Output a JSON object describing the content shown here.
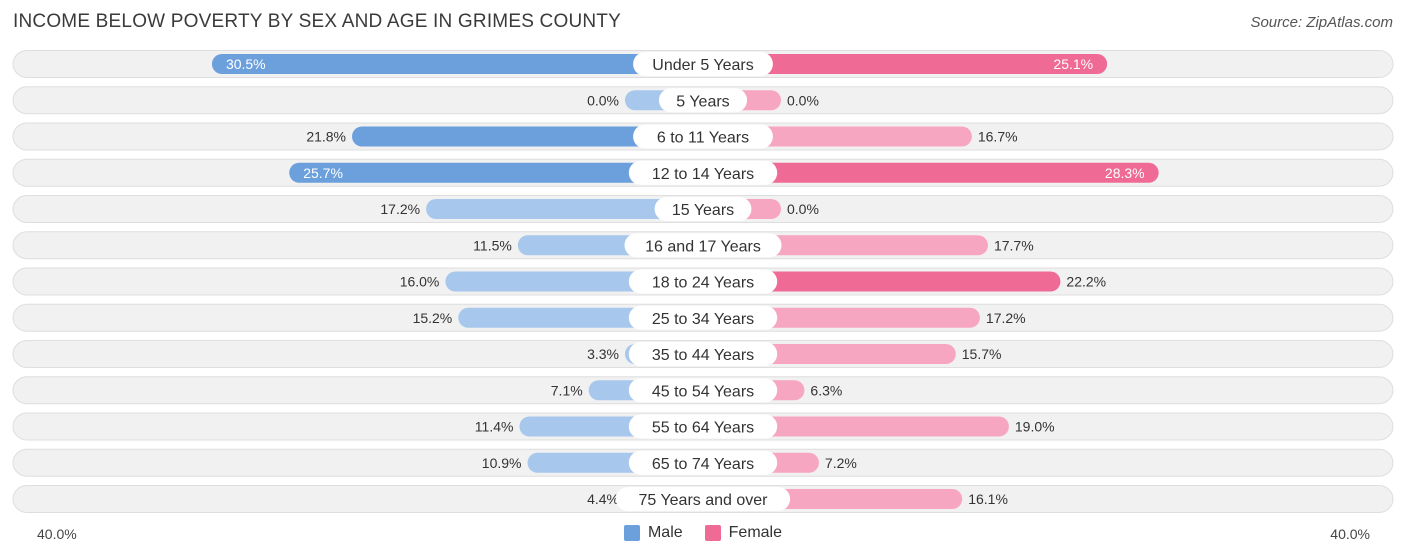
{
  "header": {
    "title": "INCOME BELOW POVERTY BY SEX AND AGE IN GRIMES COUNTY",
    "source": "Source: ZipAtlas.com"
  },
  "colors": {
    "male": "#6ca0dc",
    "male_light": "#a7c8ec",
    "female": "#f06a96",
    "female_light": "#f7a6c2"
  },
  "chart_data": {
    "type": "bar",
    "orientation": "horizontal-diverging",
    "title": "INCOME BELOW POVERTY BY SEX AND AGE IN GRIMES COUNTY",
    "categories": [
      "Under 5 Years",
      "5 Years",
      "6 to 11 Years",
      "12 to 14 Years",
      "15 Years",
      "16 and 17 Years",
      "18 to 24 Years",
      "25 to 34 Years",
      "35 to 44 Years",
      "45 to 54 Years",
      "55 to 64 Years",
      "65 to 74 Years",
      "75 Years and over"
    ],
    "series": [
      {
        "name": "Male",
        "values": [
          30.5,
          0.0,
          21.8,
          25.7,
          17.2,
          11.5,
          16.0,
          15.2,
          3.3,
          7.1,
          11.4,
          10.9,
          4.4
        ],
        "labels": [
          "30.5%",
          "0.0%",
          "21.8%",
          "25.7%",
          "17.2%",
          "11.5%",
          "16.0%",
          "15.2%",
          "3.3%",
          "7.1%",
          "11.4%",
          "10.9%",
          "4.4%"
        ]
      },
      {
        "name": "Female",
        "values": [
          25.1,
          0.0,
          16.7,
          28.3,
          0.0,
          17.7,
          22.2,
          17.2,
          15.7,
          6.3,
          19.0,
          7.2,
          16.1
        ],
        "labels": [
          "25.1%",
          "0.0%",
          "16.7%",
          "28.3%",
          "0.0%",
          "17.7%",
          "22.2%",
          "17.2%",
          "15.7%",
          "6.3%",
          "19.0%",
          "7.2%",
          "16.1%"
        ]
      }
    ],
    "xlim": [
      -40,
      40
    ],
    "axis_min_label": "40.0%",
    "axis_max_label": "40.0%",
    "legend": [
      "Male",
      "Female"
    ],
    "legend_position": "bottom-center"
  }
}
